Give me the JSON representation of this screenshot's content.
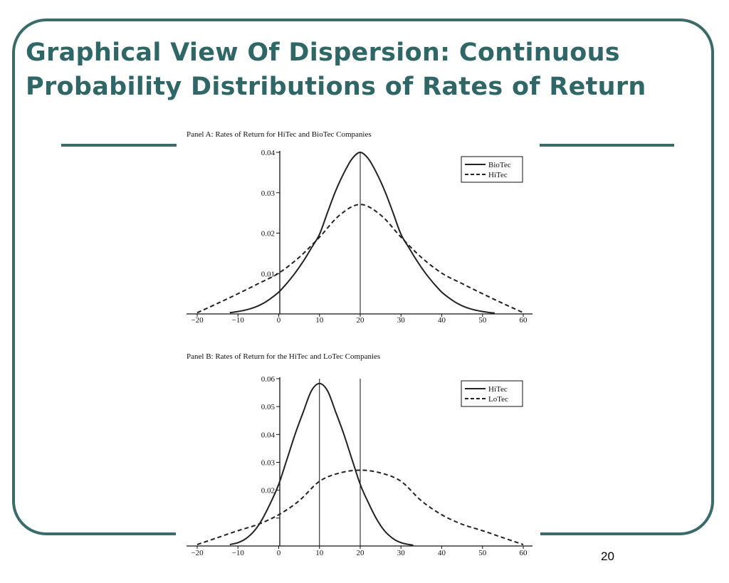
{
  "slide": {
    "title_line1": "Graphical View Of Dispersion: Continuous",
    "title_line2": "Probability Distributions of Rates of Return",
    "page_number": "20",
    "colors": {
      "accent": "#3a6b6b",
      "title": "#2f6666",
      "curve": "#222222"
    }
  },
  "chart_data": [
    {
      "type": "line",
      "title": "Panel A: Rates of Return for HiTec and BioTec Companies",
      "xlabel": "",
      "ylabel": "",
      "xlim": [
        -20,
        60
      ],
      "ylim": [
        0,
        0.04
      ],
      "xticks": [
        -20,
        -10,
        0,
        10,
        20,
        30,
        40,
        50,
        60
      ],
      "xtick_labels": [
        "−20",
        "−10",
        "0",
        "10",
        "20",
        "30",
        "40",
        "50",
        "60"
      ],
      "yticks": [
        0.01,
        0.02,
        0.03,
        0.04
      ],
      "ytick_labels": [
        "0.01",
        "0.02",
        "0.03",
        "0.04"
      ],
      "vlines": [
        20
      ],
      "legend_position": "top-right",
      "grid": false,
      "series": [
        {
          "name": "BioTec",
          "style": "solid",
          "x": [
            -12,
            -10,
            -8,
            -6,
            -4,
            -2,
            0,
            2,
            4,
            6,
            8,
            10,
            12,
            14,
            16,
            18,
            20,
            22,
            24,
            26,
            28,
            30,
            32,
            34,
            36,
            38,
            40,
            42,
            44,
            46,
            48,
            50,
            52,
            53
          ],
          "y": [
            0.0003,
            0.0006,
            0.001,
            0.0016,
            0.0025,
            0.0038,
            0.0054,
            0.0076,
            0.0101,
            0.013,
            0.0163,
            0.0197,
            0.0252,
            0.0305,
            0.0349,
            0.0384,
            0.04,
            0.0384,
            0.0349,
            0.0305,
            0.0252,
            0.0197,
            0.0163,
            0.013,
            0.0101,
            0.0076,
            0.0054,
            0.0038,
            0.0025,
            0.0016,
            0.001,
            0.0006,
            0.0003,
            0.0002
          ]
        },
        {
          "name": "HiTec",
          "style": "dashed",
          "x": [
            -20,
            -15,
            -10,
            -5,
            0,
            5,
            10,
            15,
            20,
            25,
            30,
            35,
            40,
            45,
            50,
            55,
            60
          ],
          "y": [
            0.0003,
            0.0026,
            0.005,
            0.0075,
            0.0101,
            0.014,
            0.019,
            0.0245,
            0.0271,
            0.0245,
            0.019,
            0.014,
            0.0101,
            0.0075,
            0.005,
            0.0026,
            0.0003
          ]
        }
      ]
    },
    {
      "type": "line",
      "title": "Panel B: Rates of Return for the HiTec and LoTec Companies",
      "xlabel": "",
      "ylabel": "",
      "xlim": [
        -20,
        60
      ],
      "ylim": [
        0,
        0.06
      ],
      "xticks": [
        -20,
        -10,
        0,
        10,
        20,
        30,
        40,
        50,
        60
      ],
      "xtick_labels": [
        "−20",
        "−10",
        "0",
        "10",
        "20",
        "30",
        "40",
        "50",
        "60"
      ],
      "yticks": [
        0.01,
        0.02,
        0.03,
        0.04,
        0.05,
        0.06
      ],
      "ytick_labels": [
        "",
        "0.02",
        "0.03",
        "0.04",
        "0.05",
        "0.06"
      ],
      "vlines": [
        10,
        20
      ],
      "legend_position": "top-right",
      "grid": false,
      "series": [
        {
          "name": "HiTec",
          "style": "solid",
          "x": [
            -12,
            -10,
            -8,
            -6,
            -4,
            -2,
            0,
            2,
            4,
            6,
            8,
            10,
            12,
            14,
            16,
            18,
            20,
            22,
            24,
            26,
            28,
            30,
            32,
            33
          ],
          "y": [
            0.0005,
            0.0012,
            0.0027,
            0.0054,
            0.0097,
            0.0155,
            0.0221,
            0.031,
            0.04,
            0.048,
            0.0556,
            0.0583,
            0.0556,
            0.048,
            0.04,
            0.031,
            0.0221,
            0.0155,
            0.0097,
            0.0054,
            0.0027,
            0.0012,
            0.0005,
            0.0003
          ]
        },
        {
          "name": "LoTec",
          "style": "dashed",
          "x": [
            -20,
            -15,
            -10,
            -5,
            0,
            5,
            10,
            15,
            20,
            25,
            30,
            35,
            40,
            45,
            50,
            55,
            60
          ],
          "y": [
            0.0005,
            0.003,
            0.0055,
            0.0078,
            0.0112,
            0.0162,
            0.0232,
            0.0262,
            0.0272,
            0.0262,
            0.0232,
            0.0162,
            0.0112,
            0.0078,
            0.0055,
            0.003,
            0.0005
          ]
        }
      ]
    }
  ]
}
